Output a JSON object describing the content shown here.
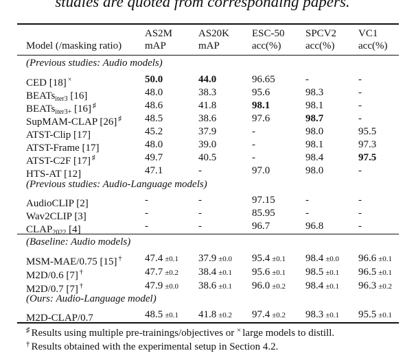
{
  "caption_fragment": "studies are quoted from corresponding papers.",
  "header": {
    "model": "Model (/masking ratio)",
    "col1_top": "AS2M",
    "col1_bottom": "mAP",
    "col2_top": "AS20K",
    "col2_bottom": "mAP",
    "col3_top": "ESC-50",
    "col3_bottom": "acc(%)",
    "col4_top": "SPCV2",
    "col4_bottom": "acc(%)",
    "col5_top": "VC1",
    "col5_bottom": "acc(%)"
  },
  "groups": {
    "prev_audio": "(Previous studies: Audio models)",
    "prev_audio_language": "(Previous studies: Audio-Language models)",
    "baseline": "(Baseline: Audio models)",
    "ours": "(Ours: Audio-Language model)"
  },
  "rows": [
    {
      "model": "CED [18]",
      "sub": "",
      "model_suffix": "",
      "mark": "×",
      "v": [
        "50.0",
        "44.0",
        "96.65",
        "-",
        "-"
      ],
      "pm": [
        "",
        "",
        "",
        "",
        ""
      ],
      "bold": [
        true,
        true,
        false,
        false,
        false
      ]
    },
    {
      "model": "BEATs",
      "sub": "iter3",
      "model_suffix": " [16]",
      "mark": "",
      "v": [
        "48.0",
        "38.3",
        "95.6",
        "98.3",
        "-"
      ],
      "pm": [
        "",
        "",
        "",
        "",
        ""
      ],
      "bold": [
        false,
        false,
        false,
        false,
        false
      ]
    },
    {
      "model": "BEATs",
      "sub": "iter3+",
      "model_suffix": " [16]",
      "mark": "♯",
      "v": [
        "48.6",
        "41.8",
        "98.1",
        "98.1",
        "-"
      ],
      "pm": [
        "",
        "",
        "",
        "",
        ""
      ],
      "bold": [
        false,
        false,
        true,
        false,
        false
      ]
    },
    {
      "model": "SupMAM-CLAP [26]",
      "sub": "",
      "model_suffix": "",
      "mark": "♯",
      "v": [
        "48.5",
        "38.6",
        "97.6",
        "98.7",
        "-"
      ],
      "pm": [
        "",
        "",
        "",
        "",
        ""
      ],
      "bold": [
        false,
        false,
        false,
        true,
        false
      ]
    },
    {
      "model": "ATST-Clip [17]",
      "sub": "",
      "model_suffix": "",
      "mark": "",
      "v": [
        "45.2",
        "37.9",
        "-",
        "98.0",
        "95.5"
      ],
      "pm": [
        "",
        "",
        "",
        "",
        ""
      ],
      "bold": [
        false,
        false,
        false,
        false,
        false
      ]
    },
    {
      "model": "ATST-Frame [17]",
      "sub": "",
      "model_suffix": "",
      "mark": "",
      "v": [
        "48.0",
        "39.0",
        "-",
        "98.1",
        "97.3"
      ],
      "pm": [
        "",
        "",
        "",
        "",
        ""
      ],
      "bold": [
        false,
        false,
        false,
        false,
        false
      ]
    },
    {
      "model": "ATST-C2F [17]",
      "sub": "",
      "model_suffix": "",
      "mark": "♯",
      "v": [
        "49.7",
        "40.5",
        "-",
        "98.4",
        "97.5"
      ],
      "pm": [
        "",
        "",
        "",
        "",
        ""
      ],
      "bold": [
        false,
        false,
        false,
        false,
        true
      ]
    },
    {
      "model": "HTS-AT [12]",
      "sub": "",
      "model_suffix": "",
      "mark": "",
      "v": [
        "47.1",
        "-",
        "97.0",
        "98.0",
        "-"
      ],
      "pm": [
        "",
        "",
        "",
        "",
        ""
      ],
      "bold": [
        false,
        false,
        false,
        false,
        false
      ]
    },
    {
      "model": "AudioCLIP [2]",
      "sub": "",
      "model_suffix": "",
      "mark": "",
      "v": [
        "-",
        "-",
        "97.15",
        "-",
        "-"
      ],
      "pm": [
        "",
        "",
        "",
        "",
        ""
      ],
      "bold": [
        false,
        false,
        false,
        false,
        false
      ]
    },
    {
      "model": "Wav2CLIP [3]",
      "sub": "",
      "model_suffix": "",
      "mark": "",
      "v": [
        "-",
        "-",
        "85.95",
        "-",
        "-"
      ],
      "pm": [
        "",
        "",
        "",
        "",
        ""
      ],
      "bold": [
        false,
        false,
        false,
        false,
        false
      ]
    },
    {
      "model": "CLAP",
      "sub": "2022",
      "model_suffix": " [4]",
      "mark": "",
      "v": [
        "-",
        "-",
        "96.7",
        "96.8",
        "-"
      ],
      "pm": [
        "",
        "",
        "",
        "",
        ""
      ],
      "bold": [
        false,
        false,
        false,
        false,
        false
      ]
    },
    {
      "model": "MSM-MAE/0.75 [15]",
      "sub": "",
      "model_suffix": "",
      "mark": "†",
      "v": [
        "47.4",
        "37.9",
        "95.4",
        "98.4",
        "96.6"
      ],
      "pm": [
        "±0.1",
        "±0.0",
        "±0.1",
        "±0.0",
        "±0.1"
      ],
      "bold": [
        false,
        false,
        false,
        false,
        false
      ]
    },
    {
      "model": "M2D/0.6 [7]",
      "sub": "",
      "model_suffix": "",
      "mark": "†",
      "v": [
        "47.7",
        "38.4",
        "95.6",
        "98.5",
        "96.5"
      ],
      "pm": [
        "±0.2",
        "±0.1",
        "±0.1",
        "±0.1",
        "±0.1"
      ],
      "bold": [
        false,
        false,
        false,
        false,
        false
      ]
    },
    {
      "model": "M2D/0.7 [7]",
      "sub": "",
      "model_suffix": "",
      "mark": "†",
      "v": [
        "47.9",
        "38.6",
        "96.0",
        "98.4",
        "96.3"
      ],
      "pm": [
        "±0.0",
        "±0.1",
        "±0.2",
        "±0.1",
        "±0.2"
      ],
      "bold": [
        false,
        false,
        false,
        false,
        false
      ]
    },
    {
      "model": "M2D-CLAP/0.7",
      "sub": "",
      "model_suffix": "",
      "mark": "",
      "v": [
        "48.5",
        "41.8",
        "97.4",
        "98.3",
        "95.5"
      ],
      "pm": [
        "±0.1",
        "±0.2",
        "±0.2",
        "±0.1",
        "±0.1"
      ],
      "bold": [
        false,
        false,
        false,
        false,
        false
      ]
    }
  ],
  "footnotes": {
    "f1_mark": "♯",
    "f1_text": "Results using multiple pre-trainings/objectives or",
    "f1_mark2": "×",
    "f1_text2": "large models to distill.",
    "f2_mark": "†",
    "f2_text": "Results obtained with the experimental setup in Section 4.2."
  }
}
